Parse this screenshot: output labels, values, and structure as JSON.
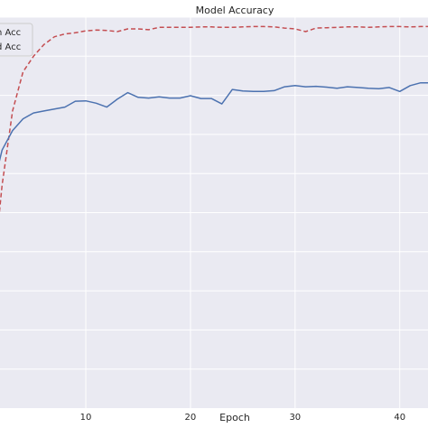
{
  "chart_data": {
    "type": "line",
    "title": "Model Accuracy",
    "xlabel": "Epoch",
    "ylabel": "",
    "xlim": [
      1.8,
      42.7
    ],
    "ylim": [
      0.0,
      1.0
    ],
    "xticks": [
      10,
      20,
      30,
      40
    ],
    "grid": true,
    "legend": {
      "placement": "top-left",
      "entries": [
        "n Acc",
        "d Acc"
      ]
    },
    "series": [
      {
        "name": "d Acc",
        "style": "dashed",
        "color": "#c44e52",
        "x": [
          1,
          2,
          3,
          4,
          5,
          6,
          7,
          8,
          9,
          10,
          11,
          12,
          13,
          14,
          15,
          16,
          17,
          18,
          19,
          20,
          21,
          22,
          23,
          24,
          25,
          26,
          27,
          28,
          29,
          30,
          31,
          32,
          33,
          34,
          35,
          36,
          37,
          38,
          39,
          40,
          41,
          42,
          43
        ],
        "y": [
          0.3,
          0.57,
          0.76,
          0.86,
          0.9,
          0.93,
          0.95,
          0.957,
          0.96,
          0.965,
          0.967,
          0.966,
          0.963,
          0.97,
          0.97,
          0.968,
          0.974,
          0.974,
          0.974,
          0.974,
          0.975,
          0.975,
          0.974,
          0.974,
          0.975,
          0.976,
          0.976,
          0.975,
          0.972,
          0.97,
          0.963,
          0.972,
          0.973,
          0.974,
          0.975,
          0.975,
          0.974,
          0.975,
          0.976,
          0.976,
          0.975,
          0.976,
          0.976
        ]
      },
      {
        "name": "n Acc",
        "style": "solid",
        "color": "#4c72b0",
        "x": [
          1,
          2,
          3,
          4,
          5,
          6,
          7,
          8,
          9,
          10,
          11,
          12,
          13,
          14,
          15,
          16,
          17,
          18,
          19,
          20,
          21,
          22,
          23,
          24,
          25,
          26,
          27,
          28,
          29,
          30,
          31,
          32,
          33,
          34,
          35,
          36,
          37,
          38,
          39,
          40,
          41,
          42,
          43
        ],
        "y": [
          0.55,
          0.66,
          0.71,
          0.74,
          0.755,
          0.76,
          0.765,
          0.77,
          0.785,
          0.786,
          0.78,
          0.77,
          0.79,
          0.807,
          0.795,
          0.793,
          0.796,
          0.793,
          0.793,
          0.799,
          0.792,
          0.792,
          0.778,
          0.815,
          0.811,
          0.81,
          0.81,
          0.812,
          0.822,
          0.825,
          0.822,
          0.823,
          0.821,
          0.818,
          0.822,
          0.82,
          0.818,
          0.817,
          0.82,
          0.81,
          0.825,
          0.832,
          0.832
        ]
      }
    ]
  }
}
